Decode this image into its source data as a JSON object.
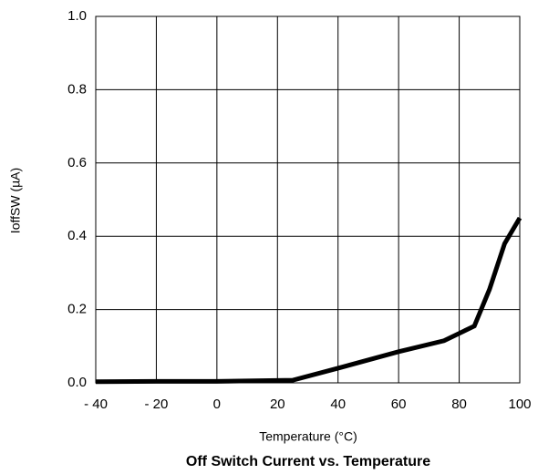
{
  "chart_data": {
    "type": "line",
    "title": "Off Switch Current vs. Temperature",
    "x_label": "Temperature (°C)",
    "y_label": "IoffSW (µA)",
    "x": [
      -40,
      -20,
      0,
      25,
      40,
      60,
      75,
      85,
      90,
      95,
      100
    ],
    "series": [
      {
        "color": "#000000",
        "values": [
          0.003,
          0.004,
          0.004,
          0.007,
          0.04,
          0.085,
          0.115,
          0.155,
          0.255,
          0.38,
          0.45
        ]
      }
    ],
    "xlim": [
      -40,
      100
    ],
    "xticks": [
      {
        "value": -40,
        "label": "- 40"
      },
      {
        "value": -20,
        "label": "- 20"
      },
      0,
      20,
      40,
      60,
      80,
      100
    ],
    "ylim": [
      0,
      1
    ],
    "yticks": [
      {
        "value": 0,
        "label": "0.0"
      },
      0.2,
      0.4,
      0.6,
      0.8,
      {
        "value": 1,
        "label": "1.0"
      }
    ],
    "grid": true
  }
}
